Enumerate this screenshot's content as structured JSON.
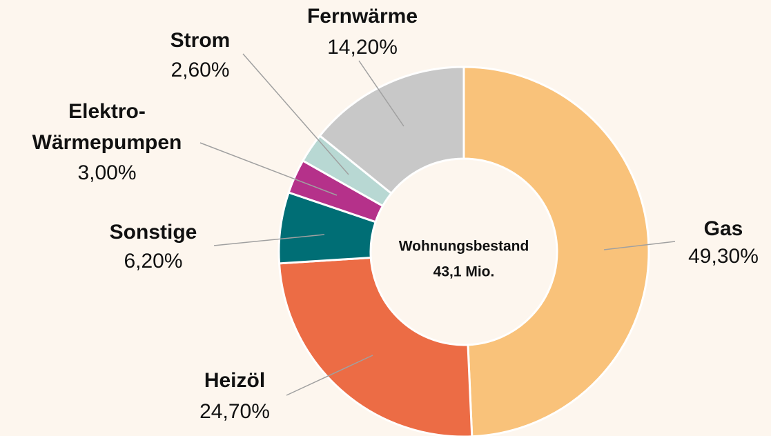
{
  "chart_data": {
    "type": "donut",
    "categories": [
      "Gas",
      "Heizöl",
      "Sonstige",
      "Elektro-\nWärmepumpen",
      "Strom",
      "Fernwärme"
    ],
    "values": [
      49.3,
      24.7,
      6.2,
      3.0,
      2.6,
      14.2
    ],
    "value_labels": [
      "49,30%",
      "24,70%",
      "6,20%",
      "3,00%",
      "2,60%",
      "14,20%"
    ],
    "colors": [
      "#f9c27a",
      "#ec6c45",
      "#006e75",
      "#b5318a",
      "#b8d8d3",
      "#c8c8c8"
    ],
    "center_label": [
      "Wohnungsbestand",
      "43,1 Mio."
    ]
  }
}
